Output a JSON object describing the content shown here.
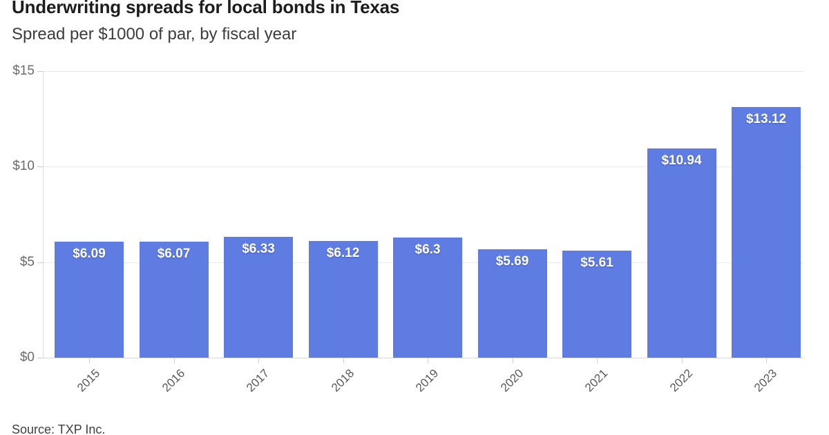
{
  "header": {
    "title": "Underwriting spreads for local bonds in Texas",
    "subtitle": "Spread per $1000 of par, by fiscal year"
  },
  "footer": {
    "source": "Source: TXP Inc."
  },
  "chart_data": {
    "type": "bar",
    "title": "Underwriting spreads for local bonds in Texas",
    "subtitle": "Spread per $1000 of par, by fiscal year",
    "categories": [
      "2015",
      "2016",
      "2017",
      "2018",
      "2019",
      "2020",
      "2021",
      "2022",
      "2023"
    ],
    "values": [
      6.09,
      6.07,
      6.33,
      6.12,
      6.3,
      5.69,
      5.61,
      10.94,
      13.12
    ],
    "value_labels": [
      "$6.09",
      "$6.07",
      "$6.33",
      "$6.12",
      "$6.3",
      "$5.69",
      "$5.61",
      "$10.94",
      "$13.12"
    ],
    "xlabel": "",
    "ylabel": "",
    "ylim": [
      0,
      15
    ],
    "yticks": [
      0,
      5,
      10,
      15
    ],
    "ytick_labels": [
      "$0",
      "$5",
      "$10",
      "$15"
    ],
    "grid": true,
    "legend": false,
    "bar_color": "#5e7ce2",
    "value_label_color": "#ffffff",
    "x_tick_rotation_deg": -45
  }
}
